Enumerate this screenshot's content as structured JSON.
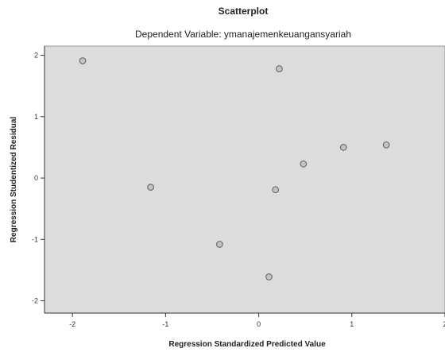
{
  "chart_data": {
    "type": "scatter",
    "title": "Scatterplot",
    "subtitle": "Dependent Variable: ymanajemenkeuangansyariah",
    "xlabel": "Regression Standardized Predicted Value",
    "ylabel": "Regression Studentized Residual",
    "xlim": [
      -2.3,
      2.0
    ],
    "ylim": [
      -2.2,
      2.15
    ],
    "xticks": [
      -2,
      -1,
      0,
      1,
      2
    ],
    "yticks": [
      -2,
      -1,
      0,
      1,
      2
    ],
    "xtick_labels": [
      "-2",
      "-1",
      "0",
      "1",
      "2"
    ],
    "ytick_labels": [
      "-2",
      "-1",
      "0",
      "1",
      "2"
    ],
    "grid": false,
    "points": [
      {
        "x": -1.89,
        "y": 1.91
      },
      {
        "x": -1.16,
        "y": -0.15
      },
      {
        "x": -0.42,
        "y": -1.08
      },
      {
        "x": 0.11,
        "y": -1.61
      },
      {
        "x": 0.18,
        "y": -0.19
      },
      {
        "x": 0.22,
        "y": 1.78
      },
      {
        "x": 0.48,
        "y": 0.23
      },
      {
        "x": 0.91,
        "y": 0.5
      },
      {
        "x": 1.37,
        "y": 0.54
      }
    ],
    "colors": {
      "background": "#dcdcdc",
      "marker_fill": "#c4c4c4",
      "marker_stroke": "#6e6e6e",
      "axis": "#333333"
    }
  }
}
